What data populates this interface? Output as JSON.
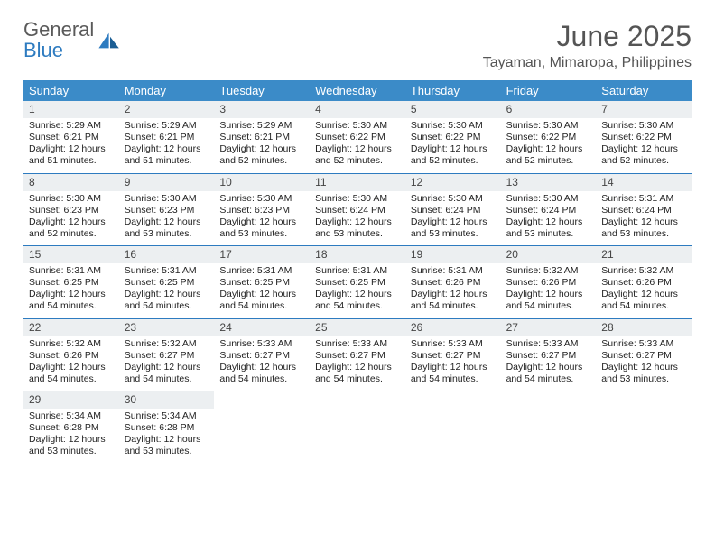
{
  "logo": {
    "text1": "General",
    "text2": "Blue"
  },
  "title": "June 2025",
  "location": "Tayaman, Mimaropa, Philippines",
  "header_bg": "#3b8bc8",
  "header_text_color": "#ffffff",
  "daynum_bg": "#eceff1",
  "week_border_color": "#2d7bc0",
  "title_color": "#555555",
  "day_labels": [
    "Sunday",
    "Monday",
    "Tuesday",
    "Wednesday",
    "Thursday",
    "Friday",
    "Saturday"
  ],
  "weeks": [
    [
      {
        "n": "1",
        "sr": "Sunrise: 5:29 AM",
        "ss": "Sunset: 6:21 PM",
        "dl": "Daylight: 12 hours and 51 minutes."
      },
      {
        "n": "2",
        "sr": "Sunrise: 5:29 AM",
        "ss": "Sunset: 6:21 PM",
        "dl": "Daylight: 12 hours and 51 minutes."
      },
      {
        "n": "3",
        "sr": "Sunrise: 5:29 AM",
        "ss": "Sunset: 6:21 PM",
        "dl": "Daylight: 12 hours and 52 minutes."
      },
      {
        "n": "4",
        "sr": "Sunrise: 5:30 AM",
        "ss": "Sunset: 6:22 PM",
        "dl": "Daylight: 12 hours and 52 minutes."
      },
      {
        "n": "5",
        "sr": "Sunrise: 5:30 AM",
        "ss": "Sunset: 6:22 PM",
        "dl": "Daylight: 12 hours and 52 minutes."
      },
      {
        "n": "6",
        "sr": "Sunrise: 5:30 AM",
        "ss": "Sunset: 6:22 PM",
        "dl": "Daylight: 12 hours and 52 minutes."
      },
      {
        "n": "7",
        "sr": "Sunrise: 5:30 AM",
        "ss": "Sunset: 6:22 PM",
        "dl": "Daylight: 12 hours and 52 minutes."
      }
    ],
    [
      {
        "n": "8",
        "sr": "Sunrise: 5:30 AM",
        "ss": "Sunset: 6:23 PM",
        "dl": "Daylight: 12 hours and 52 minutes."
      },
      {
        "n": "9",
        "sr": "Sunrise: 5:30 AM",
        "ss": "Sunset: 6:23 PM",
        "dl": "Daylight: 12 hours and 53 minutes."
      },
      {
        "n": "10",
        "sr": "Sunrise: 5:30 AM",
        "ss": "Sunset: 6:23 PM",
        "dl": "Daylight: 12 hours and 53 minutes."
      },
      {
        "n": "11",
        "sr": "Sunrise: 5:30 AM",
        "ss": "Sunset: 6:24 PM",
        "dl": "Daylight: 12 hours and 53 minutes."
      },
      {
        "n": "12",
        "sr": "Sunrise: 5:30 AM",
        "ss": "Sunset: 6:24 PM",
        "dl": "Daylight: 12 hours and 53 minutes."
      },
      {
        "n": "13",
        "sr": "Sunrise: 5:30 AM",
        "ss": "Sunset: 6:24 PM",
        "dl": "Daylight: 12 hours and 53 minutes."
      },
      {
        "n": "14",
        "sr": "Sunrise: 5:31 AM",
        "ss": "Sunset: 6:24 PM",
        "dl": "Daylight: 12 hours and 53 minutes."
      }
    ],
    [
      {
        "n": "15",
        "sr": "Sunrise: 5:31 AM",
        "ss": "Sunset: 6:25 PM",
        "dl": "Daylight: 12 hours and 54 minutes."
      },
      {
        "n": "16",
        "sr": "Sunrise: 5:31 AM",
        "ss": "Sunset: 6:25 PM",
        "dl": "Daylight: 12 hours and 54 minutes."
      },
      {
        "n": "17",
        "sr": "Sunrise: 5:31 AM",
        "ss": "Sunset: 6:25 PM",
        "dl": "Daylight: 12 hours and 54 minutes."
      },
      {
        "n": "18",
        "sr": "Sunrise: 5:31 AM",
        "ss": "Sunset: 6:25 PM",
        "dl": "Daylight: 12 hours and 54 minutes."
      },
      {
        "n": "19",
        "sr": "Sunrise: 5:31 AM",
        "ss": "Sunset: 6:26 PM",
        "dl": "Daylight: 12 hours and 54 minutes."
      },
      {
        "n": "20",
        "sr": "Sunrise: 5:32 AM",
        "ss": "Sunset: 6:26 PM",
        "dl": "Daylight: 12 hours and 54 minutes."
      },
      {
        "n": "21",
        "sr": "Sunrise: 5:32 AM",
        "ss": "Sunset: 6:26 PM",
        "dl": "Daylight: 12 hours and 54 minutes."
      }
    ],
    [
      {
        "n": "22",
        "sr": "Sunrise: 5:32 AM",
        "ss": "Sunset: 6:26 PM",
        "dl": "Daylight: 12 hours and 54 minutes."
      },
      {
        "n": "23",
        "sr": "Sunrise: 5:32 AM",
        "ss": "Sunset: 6:27 PM",
        "dl": "Daylight: 12 hours and 54 minutes."
      },
      {
        "n": "24",
        "sr": "Sunrise: 5:33 AM",
        "ss": "Sunset: 6:27 PM",
        "dl": "Daylight: 12 hours and 54 minutes."
      },
      {
        "n": "25",
        "sr": "Sunrise: 5:33 AM",
        "ss": "Sunset: 6:27 PM",
        "dl": "Daylight: 12 hours and 54 minutes."
      },
      {
        "n": "26",
        "sr": "Sunrise: 5:33 AM",
        "ss": "Sunset: 6:27 PM",
        "dl": "Daylight: 12 hours and 54 minutes."
      },
      {
        "n": "27",
        "sr": "Sunrise: 5:33 AM",
        "ss": "Sunset: 6:27 PM",
        "dl": "Daylight: 12 hours and 54 minutes."
      },
      {
        "n": "28",
        "sr": "Sunrise: 5:33 AM",
        "ss": "Sunset: 6:27 PM",
        "dl": "Daylight: 12 hours and 53 minutes."
      }
    ],
    [
      {
        "n": "29",
        "sr": "Sunrise: 5:34 AM",
        "ss": "Sunset: 6:28 PM",
        "dl": "Daylight: 12 hours and 53 minutes."
      },
      {
        "n": "30",
        "sr": "Sunrise: 5:34 AM",
        "ss": "Sunset: 6:28 PM",
        "dl": "Daylight: 12 hours and 53 minutes."
      },
      null,
      null,
      null,
      null,
      null
    ]
  ]
}
